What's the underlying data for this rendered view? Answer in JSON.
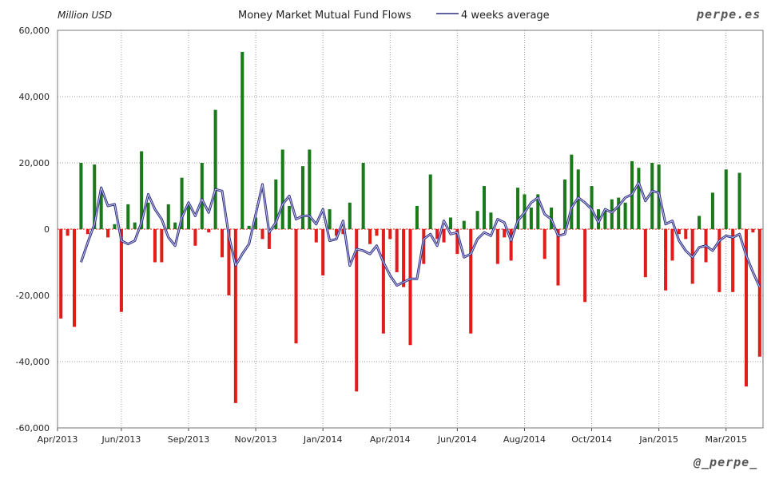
{
  "chart_data": {
    "type": "bar",
    "title": "Money Market Mutual Fund Flows",
    "ylabel": "Million USD",
    "legend": [
      "4 weeks average"
    ],
    "legend_position": "top",
    "watermark_top": "perpe.es",
    "watermark_bottom": "@_perpe_",
    "ylim": [
      -60000,
      60000
    ],
    "yticks": [
      60000,
      40000,
      20000,
      0,
      -20000,
      -40000,
      -60000
    ],
    "ytick_labels": [
      "60,000",
      "40,000",
      "20,000",
      "0",
      "-20,000",
      "-40,000",
      "-60,000"
    ],
    "x_tick_labels": [
      "Apr/2013",
      "Jun/2013",
      "Sep/2013",
      "Nov/2013",
      "Jan/2014",
      "Apr/2014",
      "Jun/2014",
      "Aug/2014",
      "Oct/2014",
      "Jan/2015",
      "Mar/2015"
    ],
    "x_tick_positions": [
      0,
      9,
      19,
      29,
      39,
      49,
      59,
      69,
      79,
      89,
      99
    ],
    "colors": {
      "positive": "#1a7a1a",
      "negative": "#e21b1b",
      "average": "#2e2e80",
      "grid": "#9a9a9a"
    },
    "weeks": 105,
    "values": [
      -27000,
      -2000,
      -29500,
      20000,
      -1500,
      19500,
      12000,
      -2500,
      1500,
      -25000,
      7500,
      2000,
      23500,
      8000,
      -10000,
      -10000,
      7500,
      2000,
      15500,
      7500,
      -5000,
      20000,
      -1000,
      36000,
      -8500,
      -20000,
      -52500,
      53500,
      1000,
      3500,
      -3000,
      -6000,
      15000,
      24000,
      7000,
      -34500,
      19000,
      24000,
      -4000,
      -14000,
      6000,
      -2000,
      -1500,
      8000,
      -49000,
      20000,
      -4500,
      -2000,
      -31500,
      -3000,
      -13000,
      -17500,
      -35000,
      7000,
      -10500,
      16500,
      -3000,
      -4000,
      3500,
      -7500,
      2500,
      -31500,
      5500,
      13000,
      5000,
      -10500,
      -2500,
      -9500,
      12500,
      10500,
      6500,
      10500,
      -9000,
      6500,
      -17000,
      15000,
      22500,
      18000,
      -22000,
      13000,
      6000,
      5500,
      9000,
      9500,
      8000,
      20500,
      18500,
      -14500,
      20000,
      19500,
      -18500,
      -9500,
      -1500,
      -3000,
      -16500,
      4000,
      -10000,
      11000,
      -19000,
      18000,
      -19000,
      17000,
      -47500,
      -1000,
      -38500
    ],
    "average": [
      null,
      null,
      null,
      -10000,
      -4000,
      1500,
      12500,
      7000,
      7500,
      -3500,
      -4500,
      -3500,
      2000,
      10500,
      6000,
      3000,
      -2500,
      -5000,
      3500,
      8000,
      4000,
      9000,
      5000,
      12000,
      11500,
      -2000,
      -11000,
      -7500,
      -4500,
      4500,
      13500,
      -1000,
      2000,
      7500,
      10000,
      3000,
      4000,
      4000,
      1500,
      6000,
      -3500,
      -3000,
      2500,
      -11000,
      -6000,
      -6500,
      -7500,
      -5000,
      -10000,
      -14000,
      -17000,
      -16000,
      -15000,
      -15000,
      -3000,
      -1500,
      -5000,
      2500,
      -1500,
      -1000,
      -8500,
      -7500,
      -3000,
      -1000,
      -2000,
      3000,
      2000,
      -3500,
      2500,
      5000,
      8000,
      9500,
      4500,
      3000,
      -2000,
      -1500,
      6500,
      9500,
      8000,
      6000,
      2000,
      6000,
      5000,
      7000,
      9500,
      10500,
      14000,
      8500,
      11500,
      11000,
      1500,
      2500,
      -3500,
      -6500,
      -8500,
      -5500,
      -5000,
      -6500,
      -3500,
      -2000,
      -2500,
      -1500,
      -8000,
      -13000,
      -17500
    ]
  }
}
